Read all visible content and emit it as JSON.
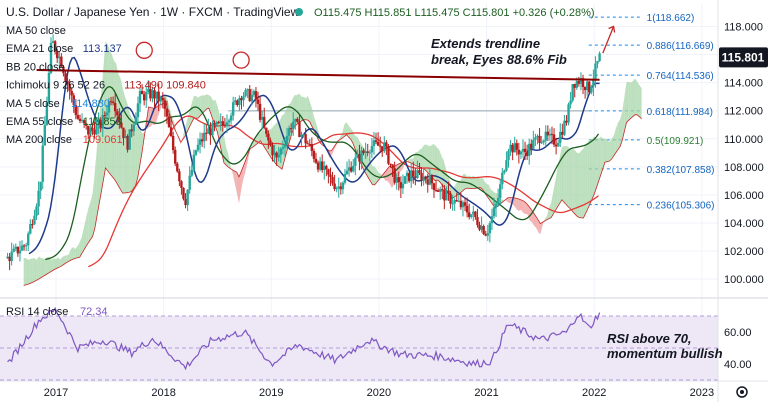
{
  "header": {
    "symbol": "U.S. Dollar / Japanese Yen · 1W · FXCM · TradingView",
    "ohlc": "O115.475 H115.851 L115.475 C115.801 +0.326 (+0.28%)",
    "status_dot_color": "#26a69a"
  },
  "indicators": [
    {
      "label": "MA 50 close",
      "value": "",
      "color": "#9598a1"
    },
    {
      "label": "EMA 21 close",
      "value": "113.137",
      "color": "#1e3a8a"
    },
    {
      "label": "BB 20 close",
      "value": "",
      "color": "#9598a1"
    },
    {
      "label": "Ichimoku 9 26 52 26",
      "value": "113.490  109.840",
      "color": "#b71c1c"
    },
    {
      "label": "MA 5 close",
      "value": "114.880",
      "color": "#1e88e5"
    },
    {
      "label": "EMA 55 close",
      "value": "110.853",
      "color": "#1b5e20"
    },
    {
      "label": "MA 200 close",
      "value": "109.061",
      "color": "#e53935"
    }
  ],
  "annotations": {
    "trendline_text_1": "Extends trendline",
    "trendline_text_2": "break, Eyes 88.6% Fib",
    "rsi_text_1": "RSI above 70,",
    "rsi_text_2": "momentum bullish"
  },
  "price_badge": {
    "value": "115.801",
    "color": "#131722"
  },
  "rsi_label": {
    "name": "RSI 14 close",
    "value": "72.34"
  },
  "colors": {
    "candle_up": "#26a69a",
    "candle_down": "#b71c1c",
    "trendline": "#8b0000",
    "cloud_green": "#a5d6a7",
    "cloud_red": "#ef9a9a",
    "fib": "#1e88e5",
    "rsi_line": "#7e57c2",
    "rsi_band": "#ede7f6"
  },
  "chart_data": {
    "type": "candlestick",
    "x_ticks": [
      "2017",
      "2018",
      "2019",
      "2020",
      "2021",
      "2022",
      "2023"
    ],
    "y_ticks": [
      "100.000",
      "102.000",
      "104.000",
      "106.000",
      "108.000",
      "110.000",
      "112.000",
      "114.000",
      "116.000",
      "118.000"
    ],
    "ylim": [
      98.8,
      119.6
    ],
    "fib_levels": [
      {
        "label": "1(118.662)",
        "value": 118.662
      },
      {
        "label": "0.886(116.669)",
        "value": 116.669
      },
      {
        "label": "0.764(114.536)",
        "value": 114.536
      },
      {
        "label": "0.618(111.984)",
        "value": 111.984
      },
      {
        "label": "0.5(109.921)",
        "value": 109.921
      },
      {
        "label": "0.382(107.858)",
        "value": 107.858
      },
      {
        "label": "0.236(105.306)",
        "value": 105.306
      }
    ],
    "price_series_anchors": [
      {
        "t": 2016.55,
        "v": 101.5
      },
      {
        "t": 2016.72,
        "v": 102.5
      },
      {
        "t": 2016.85,
        "v": 106.5
      },
      {
        "t": 2016.96,
        "v": 117.0
      },
      {
        "t": 2017.05,
        "v": 115.5
      },
      {
        "t": 2017.2,
        "v": 111.5
      },
      {
        "t": 2017.3,
        "v": 110.5
      },
      {
        "t": 2017.42,
        "v": 111.0
      },
      {
        "t": 2017.52,
        "v": 113.2
      },
      {
        "t": 2017.66,
        "v": 109.5
      },
      {
        "t": 2017.78,
        "v": 113.0
      },
      {
        "t": 2017.9,
        "v": 113.2
      },
      {
        "t": 2018.0,
        "v": 112.5
      },
      {
        "t": 2018.1,
        "v": 108.8
      },
      {
        "t": 2018.2,
        "v": 105.5
      },
      {
        "t": 2018.3,
        "v": 109.2
      },
      {
        "t": 2018.4,
        "v": 110.5
      },
      {
        "t": 2018.55,
        "v": 111.0
      },
      {
        "t": 2018.72,
        "v": 113.2
      },
      {
        "t": 2018.85,
        "v": 113.0
      },
      {
        "t": 2018.95,
        "v": 110.2
      },
      {
        "t": 2019.05,
        "v": 108.5
      },
      {
        "t": 2019.2,
        "v": 111.3
      },
      {
        "t": 2019.35,
        "v": 109.5
      },
      {
        "t": 2019.45,
        "v": 108.0
      },
      {
        "t": 2019.62,
        "v": 106.5
      },
      {
        "t": 2019.75,
        "v": 108.2
      },
      {
        "t": 2019.92,
        "v": 109.5
      },
      {
        "t": 2020.05,
        "v": 109.5
      },
      {
        "t": 2020.18,
        "v": 106.5
      },
      {
        "t": 2020.3,
        "v": 107.5
      },
      {
        "t": 2020.45,
        "v": 107.2
      },
      {
        "t": 2020.6,
        "v": 106.0
      },
      {
        "t": 2020.75,
        "v": 105.3
      },
      {
        "t": 2020.88,
        "v": 104.5
      },
      {
        "t": 2021.0,
        "v": 103.3
      },
      {
        "t": 2021.1,
        "v": 105.5
      },
      {
        "t": 2021.2,
        "v": 109.5
      },
      {
        "t": 2021.35,
        "v": 109.0
      },
      {
        "t": 2021.5,
        "v": 110.2
      },
      {
        "t": 2021.65,
        "v": 109.8
      },
      {
        "t": 2021.75,
        "v": 111.5
      },
      {
        "t": 2021.8,
        "v": 114.0
      },
      {
        "t": 2021.88,
        "v": 114.2
      },
      {
        "t": 2021.95,
        "v": 113.5
      },
      {
        "t": 2022.05,
        "v": 115.8
      }
    ],
    "trendline": [
      {
        "t": 2016.82,
        "v": 114.9
      },
      {
        "t": 2022.05,
        "v": 114.2
      }
    ],
    "rsi": {
      "label": "RSI 14",
      "ylim": [
        30,
        80
      ],
      "y_ticks": [
        "60.00",
        "40.00"
      ],
      "band": [
        30,
        70
      ],
      "anchors": [
        {
          "t": 2016.55,
          "v": 40
        },
        {
          "t": 2016.85,
          "v": 68
        },
        {
          "t": 2017.0,
          "v": 74
        },
        {
          "t": 2017.2,
          "v": 50
        },
        {
          "t": 2017.45,
          "v": 55
        },
        {
          "t": 2017.7,
          "v": 47
        },
        {
          "t": 2017.9,
          "v": 56
        },
        {
          "t": 2018.2,
          "v": 38
        },
        {
          "t": 2018.45,
          "v": 55
        },
        {
          "t": 2018.75,
          "v": 60
        },
        {
          "t": 2019.0,
          "v": 40
        },
        {
          "t": 2019.25,
          "v": 52
        },
        {
          "t": 2019.6,
          "v": 42
        },
        {
          "t": 2019.9,
          "v": 55
        },
        {
          "t": 2020.2,
          "v": 46
        },
        {
          "t": 2020.55,
          "v": 45
        },
        {
          "t": 2020.9,
          "v": 40
        },
        {
          "t": 2021.05,
          "v": 42
        },
        {
          "t": 2021.2,
          "v": 65
        },
        {
          "t": 2021.5,
          "v": 55
        },
        {
          "t": 2021.75,
          "v": 60
        },
        {
          "t": 2021.85,
          "v": 72
        },
        {
          "t": 2021.95,
          "v": 62
        },
        {
          "t": 2022.05,
          "v": 72.34
        }
      ]
    }
  }
}
